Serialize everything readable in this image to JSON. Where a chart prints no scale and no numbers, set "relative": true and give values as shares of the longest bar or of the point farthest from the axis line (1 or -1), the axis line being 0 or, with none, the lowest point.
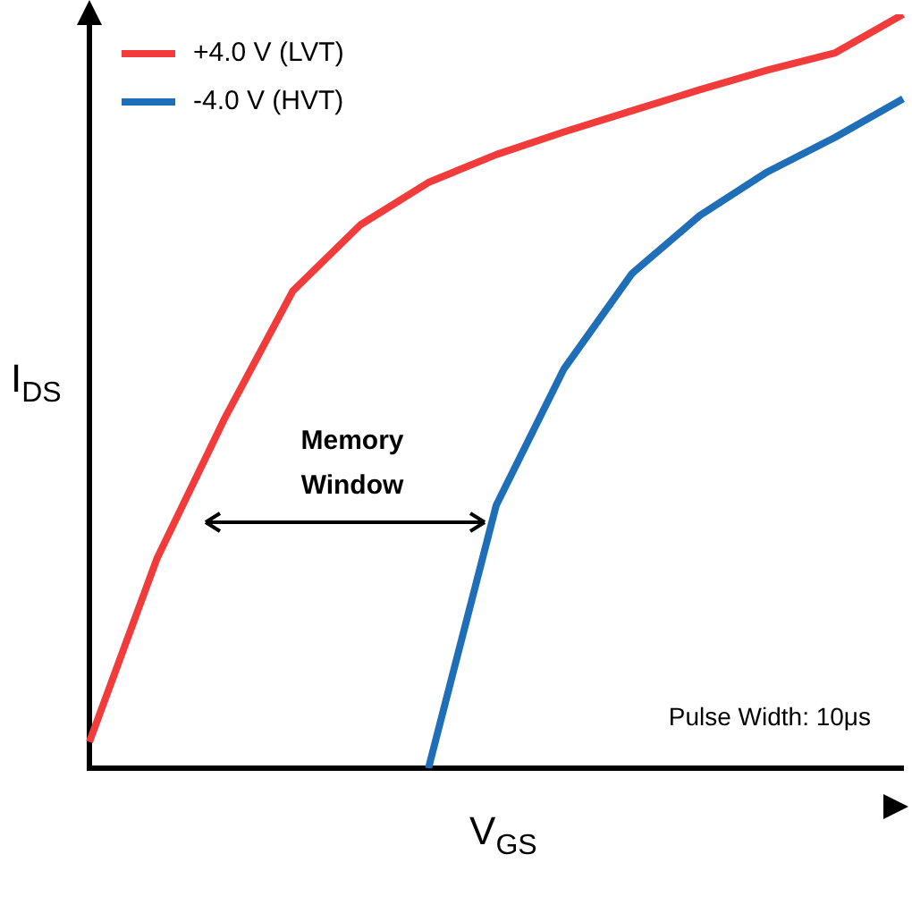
{
  "chart_data": {
    "type": "line",
    "relative": true,
    "xlabel": "V$_{GS}$",
    "ylabel": "I$_{DS}$",
    "legend": "top left",
    "marker": "none",
    "line_style": "solid",
    "categories": [
      null,
      null,
      null,
      null,
      null,
      null,
      null,
      null,
      null,
      null,
      null,
      null,
      null
    ],
    "annotations": [
      "Memory Window",
      "Pulse Width: 10μs"
    ],
    "series": [
      {
        "name": "+4.0 V (LVT)",
        "color": "#f23c3c",
        "values": [
          0.035,
          0.279,
          0.465,
          0.633,
          0.721,
          0.777,
          0.814,
          0.844,
          0.872,
          0.9,
          0.926,
          0.949,
          1
        ]
      },
      {
        "name": "-4.0 V (HVT)",
        "color": "#1f6fb8",
        "values": [
          null,
          null,
          null,
          null,
          null,
          0,
          0.349,
          0.53,
          0.656,
          0.733,
          0.791,
          0.837,
          0.888
        ]
      }
    ]
  }
}
